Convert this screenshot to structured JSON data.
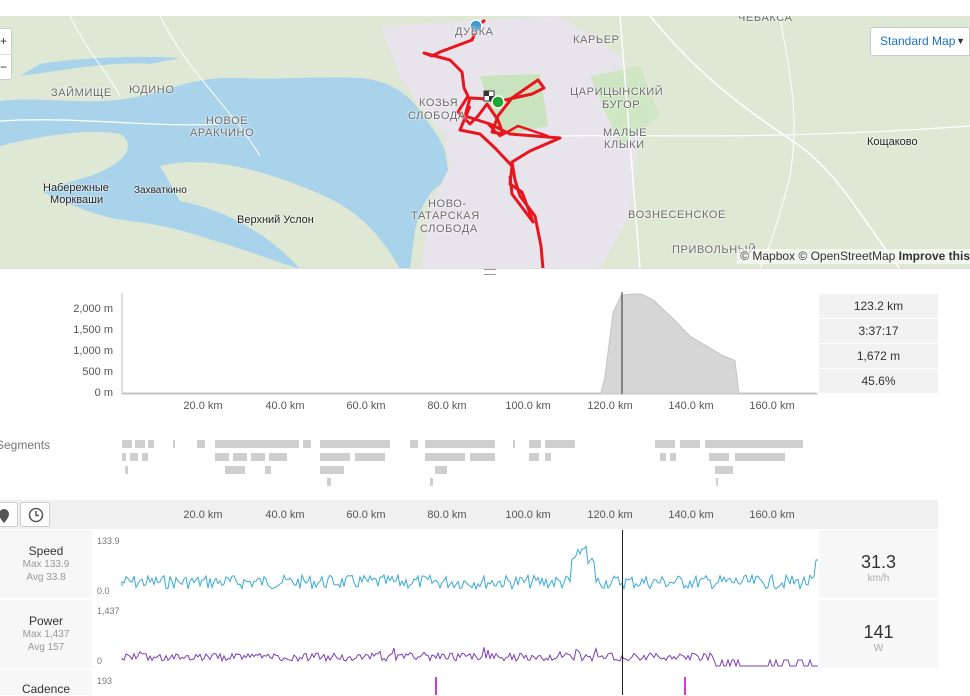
{
  "map": {
    "type_button": "Standard Map",
    "zoom_in": "+",
    "zoom_out": "−",
    "attribution_mapbox": "© Mapbox",
    "attribution_osm": "© OpenStreetMap",
    "attribution_improve": "Improve this",
    "labels": {
      "chebaksa": "ЧЕБАКСА",
      "dubrovka": "ДУБКА",
      "karyer": "КАРЬЕР",
      "zaimishche": "ЗАЙМИЩЕ",
      "yudino": "ЮДИНО",
      "novoe_arakchino_1": "НОВОЕ",
      "novoe_arakchino_2": "АРАКЧИНО",
      "kozya_1": "КОЗЬЯ",
      "kozya_2": "СЛОБОДА",
      "tsaritsyno_1": "ЦАРИЦЫНСКИЙ",
      "tsaritsyno_2": "БУГОР",
      "malye_1": "МАЛЫЕ",
      "malye_2": "КЛЫКИ",
      "novotat_1": "НОВО-",
      "novotat_2": "ТАТАРСКАЯ",
      "novotat_3": "СЛОБОДА",
      "voznesenskoe": "ВОЗНЕСЕНСКОЕ",
      "privolny": "ПРИВОЛЬНЫЙ",
      "naberezhnye_1": "Набережные",
      "naberezhnye_2": "Моркваши",
      "zakhvatkino": "Захваткино",
      "verkhny_uslon": "Верхний Услон",
      "koshchakovo": "Кощаково"
    },
    "colors": {
      "route": "#e8151f",
      "start": "#3d9bd1",
      "end": "#1fa630",
      "water": "#a9d3ea",
      "land": "#dfe8d4"
    }
  },
  "elevation": {
    "y_ticks": [
      "2,000 m",
      "1,500 m",
      "1,000 m",
      "500 m",
      "0 m"
    ],
    "x_ticks": [
      "20.0 km",
      "40.0 km",
      "60.0 km",
      "80.0 km",
      "100.0 km",
      "120.0 km",
      "140.0 km",
      "160.0 km"
    ],
    "stats": [
      "123.2 km",
      "3:37:17",
      "1,672 m",
      "45.6%"
    ],
    "profile_km": [
      0,
      118,
      119,
      121,
      123,
      126,
      128,
      131,
      136,
      140,
      145,
      148,
      151,
      152,
      171
    ],
    "profile_m": [
      20,
      20,
      350,
      1700,
      2050,
      2300,
      2250,
      1950,
      1550,
      1200,
      950,
      800,
      700,
      20,
      20
    ]
  },
  "segments": {
    "label": "Segments"
  },
  "analysis": {
    "x_ticks": [
      "20.0 km",
      "40.0 km",
      "60.0 km",
      "80.0 km",
      "100.0 km",
      "120.0 km",
      "140.0 km",
      "160.0 km"
    ],
    "rows": [
      {
        "name": "Speed",
        "max": "Max 133.9",
        "avg": "Avg 33.8",
        "ymax": "133.9",
        "ymin": "0.0",
        "value": "31.3",
        "unit": "km/h",
        "color": "#3aa9d8"
      },
      {
        "name": "Power",
        "max": "Max 1,437",
        "avg": "Avg 157",
        "ymax": "1,437",
        "ymin": "0",
        "value": "141",
        "unit": "W",
        "color": "#7b3fb8"
      },
      {
        "name": "Cadence",
        "ymax": "193",
        "color": "#d63ad6"
      }
    ]
  }
}
